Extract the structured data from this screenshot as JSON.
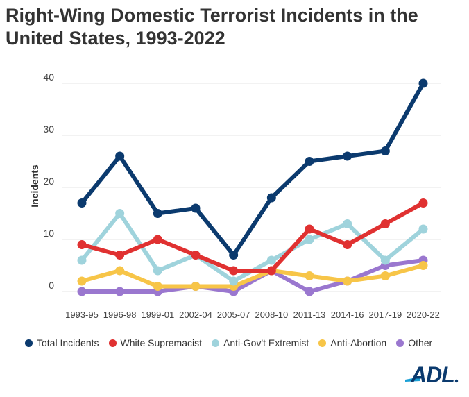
{
  "title": "Right-Wing Domestic Terrorist Incidents in the United States, 1993-2022",
  "logo_text": "ADL",
  "chart_data": {
    "type": "line",
    "title": "Right-Wing Domestic Terrorist Incidents in the United States, 1993-2022",
    "xlabel": "",
    "ylabel": "Incidents",
    "ylim": [
      0,
      40
    ],
    "yticks": [
      0,
      10,
      20,
      30,
      40
    ],
    "grid": true,
    "legend_position": "bottom",
    "categories": [
      "1993-95",
      "1996-98",
      "1999-01",
      "2002-04",
      "2005-07",
      "2008-10",
      "2011-13",
      "2014-16",
      "2017-19",
      "2020-22"
    ],
    "series": [
      {
        "name": "Total Incidents",
        "color": "#0b3a6e",
        "values": [
          17,
          26,
          15,
          16,
          7,
          18,
          25,
          26,
          27,
          40
        ]
      },
      {
        "name": "White Supremacist",
        "color": "#e03131",
        "values": [
          9,
          7,
          10,
          7,
          4,
          4,
          12,
          9,
          13,
          17
        ]
      },
      {
        "name": "Anti-Gov't Extremist",
        "color": "#9fd3dc",
        "values": [
          6,
          15,
          4,
          7,
          2,
          6,
          10,
          13,
          6,
          12
        ]
      },
      {
        "name": "Anti-Abortion",
        "color": "#f7c548",
        "values": [
          2,
          4,
          1,
          1,
          1,
          4,
          3,
          2,
          3,
          5
        ]
      },
      {
        "name": "Other",
        "color": "#9a77cf",
        "values": [
          0,
          0,
          0,
          1,
          0,
          4,
          0,
          2,
          5,
          6
        ]
      }
    ]
  }
}
